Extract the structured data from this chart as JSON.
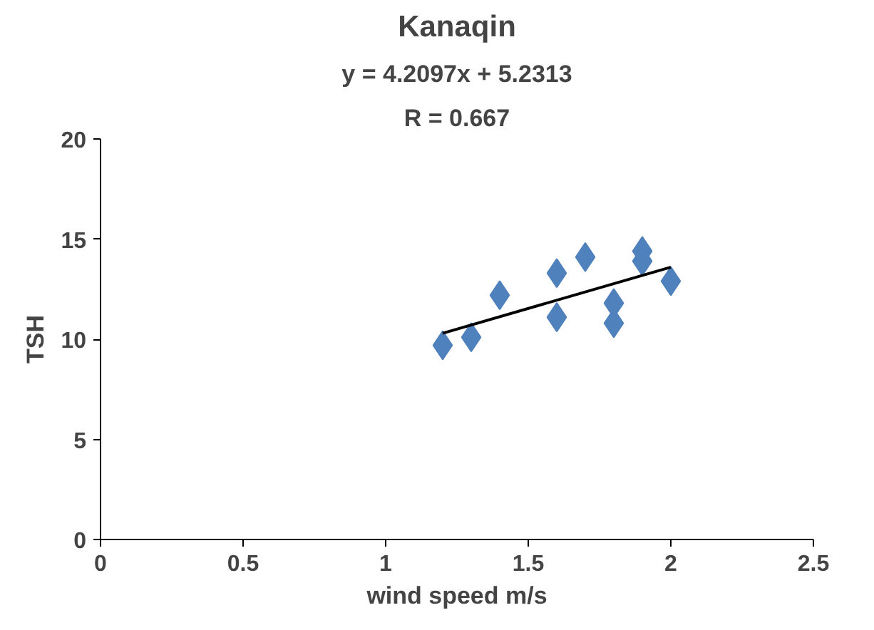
{
  "chart_data": {
    "type": "scatter",
    "title": "Kanaqin",
    "xlabel": "wind speed m/s",
    "ylabel": "TSH",
    "annotations": [
      "y = 4.2097x + 5.2313",
      "R = 0.667"
    ],
    "xlim": [
      0,
      2.5
    ],
    "ylim": [
      0,
      20
    ],
    "xticks": [
      0,
      0.5,
      1,
      1.5,
      2,
      2.5
    ],
    "yticks": [
      0,
      5,
      10,
      15,
      20
    ],
    "grid": false,
    "series": [
      {
        "color": "#4f81bd",
        "marker": "diamond",
        "x": [
          1.2,
          1.3,
          1.4,
          1.6,
          1.6,
          1.7,
          1.8,
          1.8,
          1.9,
          1.9,
          2.0
        ],
        "values": [
          9.7,
          10.1,
          12.2,
          13.3,
          11.1,
          14.1,
          11.8,
          10.8,
          14.4,
          13.9,
          12.9
        ]
      },
      {
        "type": "line",
        "color": "#000000",
        "marker": "none",
        "x": [
          1.2,
          2.0
        ],
        "values": [
          10.3,
          13.6
        ]
      }
    ]
  }
}
